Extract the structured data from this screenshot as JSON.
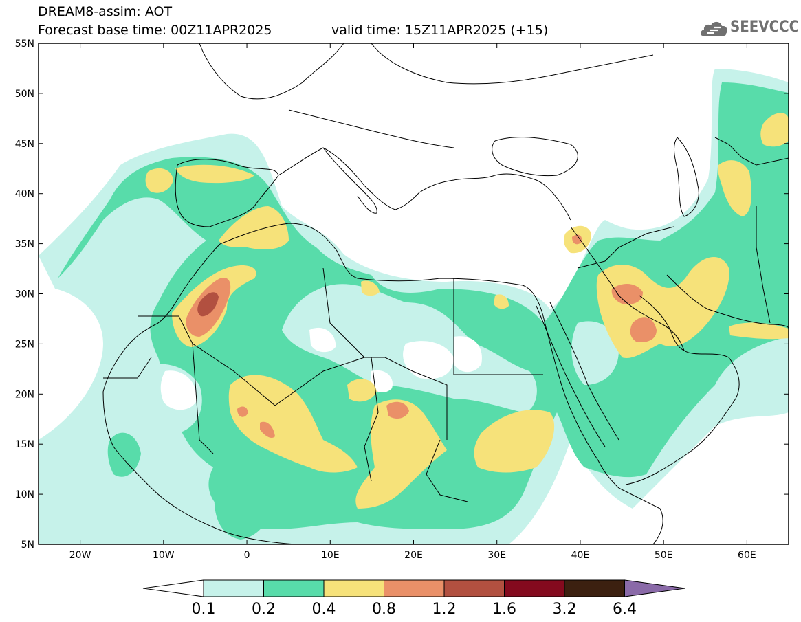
{
  "header": {
    "title": "DREAM8-assim: AOT",
    "base_time": "Forecast base time: 00Z11APR2025",
    "valid_time": "valid time: 15Z11APR2025 (+15)"
  },
  "logo": {
    "text": "SEEVCCC",
    "icon": "cloud-icon"
  },
  "map": {
    "lat_range": [
      5,
      55
    ],
    "lon_range": [
      -25,
      65
    ],
    "lat_ticks": [
      "5N",
      "10N",
      "15N",
      "20N",
      "25N",
      "30N",
      "35N",
      "40N",
      "45N",
      "50N",
      "55N"
    ],
    "lon_ticks": [
      "20W",
      "10W",
      "0",
      "10E",
      "20E",
      "30E",
      "40E",
      "50E",
      "60E"
    ],
    "field": "AOT"
  },
  "legend": {
    "levels": [
      "0.1",
      "0.2",
      "0.4",
      "0.8",
      "1.2",
      "1.6",
      "3.2",
      "6.4"
    ],
    "colors": [
      "#c6f2ea",
      "#58dcaa",
      "#f6e27a",
      "#ea9068",
      "#b25040",
      "#840a1e",
      "#3c2010",
      "#8a6aa8"
    ],
    "under_color": "#ffffff"
  }
}
